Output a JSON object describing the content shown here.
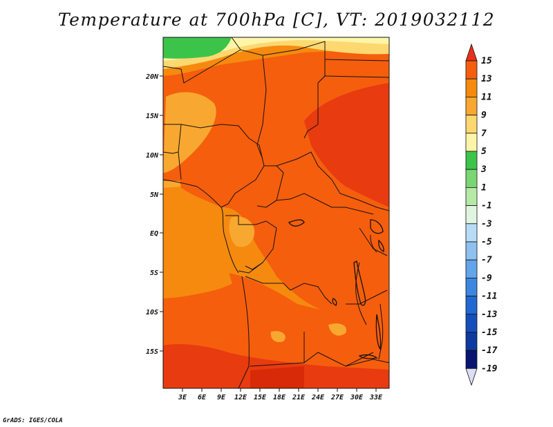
{
  "title": "Temperature at 700hPa [C], VT: 2019032112",
  "credit": "GrADS: IGES/COLA",
  "map": {
    "lat_labels": [
      "20N",
      "15N",
      "10N",
      "5N",
      "EQ",
      "5S",
      "10S",
      "15S"
    ],
    "lon_labels": [
      "3E",
      "6E",
      "9E",
      "12E",
      "15E",
      "18E",
      "21E",
      "24E",
      "27E",
      "30E",
      "33E"
    ]
  },
  "colorbar": {
    "levels": [
      "15",
      "13",
      "11",
      "9",
      "7",
      "5",
      "3",
      "1",
      "-1",
      "-3",
      "-5",
      "-7",
      "-9",
      "-11",
      "-13",
      "-15",
      "-17",
      "-19"
    ],
    "colors": {
      "gt13": "#e83b10",
      "11to13": "#f55e0d",
      "9to11": "#f58a0f",
      "7to9": "#f8a830",
      "5to7": "#fdd870",
      "3to5": "#fff5a8",
      "1to3": "#3cc44a",
      "-1to1": "#7ad672",
      "-3to-1": "#b6e9a8",
      "-5to-3": "#e0f5e0",
      "-7to-5": "#b8dcf6",
      "-9to-7": "#8ec1f0",
      "-11to-9": "#63a4ea",
      "-13to-11": "#3c86e0",
      "-15to-13": "#2168d2",
      "-17to-15": "#144fbb",
      "-19to-17": "#0c3a9e",
      "lt-19": "#0a1470",
      "below": "#ddddf5",
      "above": "#e8301a"
    }
  }
}
